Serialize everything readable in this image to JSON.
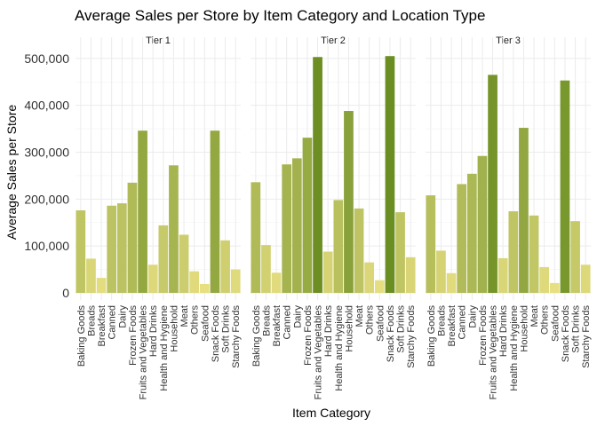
{
  "chart_data": {
    "type": "bar",
    "title": "Average Sales per Store by Item Category and Location Type",
    "xlabel": "Item Category",
    "ylabel": "Average Sales per Store",
    "ylim": [
      0,
      530000
    ],
    "yticks": [
      0,
      100000,
      200000,
      300000,
      400000,
      500000
    ],
    "ytick_labels": [
      "0",
      "100,000",
      "200,000",
      "300,000",
      "400,000",
      "500,000"
    ],
    "grid": true,
    "legend": "none",
    "categories": [
      "Baking Goods",
      "Breads",
      "Breakfast",
      "Canned",
      "Dairy",
      "Frozen Foods",
      "Fruits and Vegetables",
      "Hard Drinks",
      "Health and Hygiene",
      "Household",
      "Meat",
      "Others",
      "Seafood",
      "Snack Foods",
      "Soft Drinks",
      "Starchy Foods"
    ],
    "series": [
      {
        "name": "Tier 1",
        "values": [
          176000,
          73000,
          32000,
          186000,
          191000,
          235000,
          346000,
          60000,
          144000,
          272000,
          124000,
          46000,
          19000,
          346000,
          112000,
          50000
        ]
      },
      {
        "name": "Tier 2",
        "values": [
          236000,
          102000,
          43000,
          274000,
          287000,
          331000,
          503000,
          88000,
          198000,
          388000,
          180000,
          65000,
          27000,
          505000,
          172000,
          76000
        ]
      },
      {
        "name": "Tier 3",
        "values": [
          208000,
          90000,
          42000,
          232000,
          254000,
          292000,
          465000,
          74000,
          174000,
          352000,
          165000,
          55000,
          21000,
          453000,
          153000,
          60000
        ]
      }
    ],
    "color_scale": {
      "low": "#ece286",
      "high": "#6b8e23"
    }
  }
}
